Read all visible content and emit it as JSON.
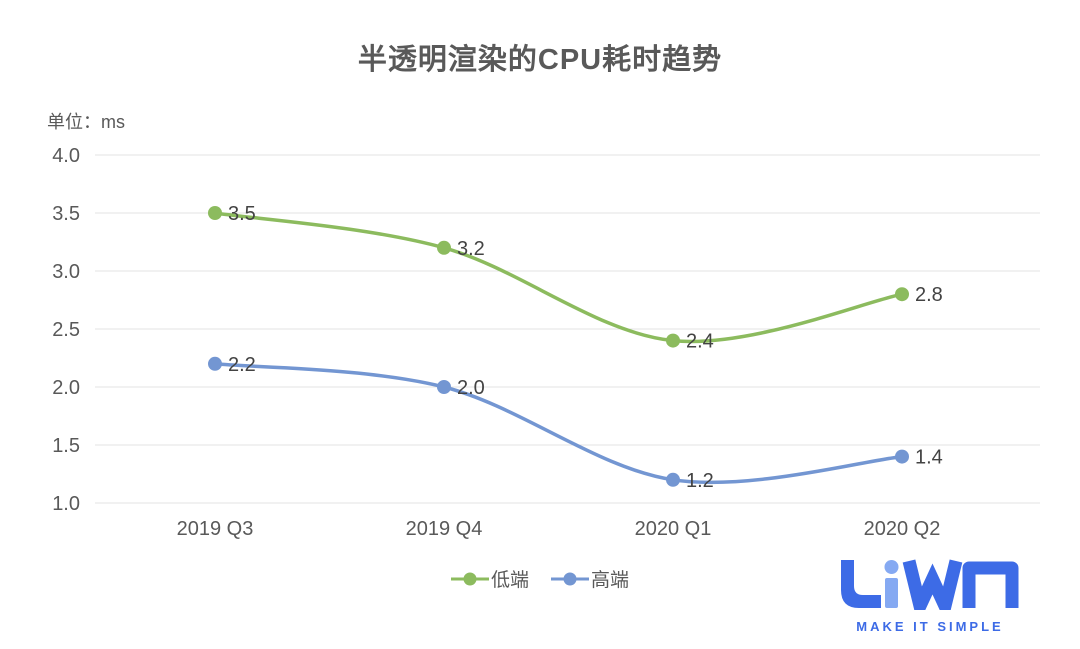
{
  "chart_data": {
    "type": "line",
    "title": "半透明渲染的CPU耗时趋势",
    "unit_label": "单位：ms",
    "categories": [
      "2019 Q3",
      "2019 Q4",
      "2020 Q1",
      "2020 Q2"
    ],
    "series": [
      {
        "name": "低端",
        "color": "#8CBB5E",
        "values": [
          3.5,
          3.2,
          2.4,
          2.8
        ]
      },
      {
        "name": "高端",
        "color": "#7396D2",
        "values": [
          2.2,
          2.0,
          1.2,
          1.4
        ]
      }
    ],
    "y_ticks": [
      4.0,
      3.5,
      3.0,
      2.5,
      2.0,
      1.5,
      1.0
    ],
    "ylim": [
      1.0,
      4.0
    ],
    "grid": true,
    "grid_color": "#E3E3E3",
    "tick_label_color": "#595959",
    "data_label_color": "#434343",
    "legend_position": "bottom"
  },
  "logo": {
    "text": "LiWA",
    "tagline": "MAKE IT SIMPLE",
    "primary_color": "#3D6BE6",
    "accent_color": "#85A9F2"
  }
}
